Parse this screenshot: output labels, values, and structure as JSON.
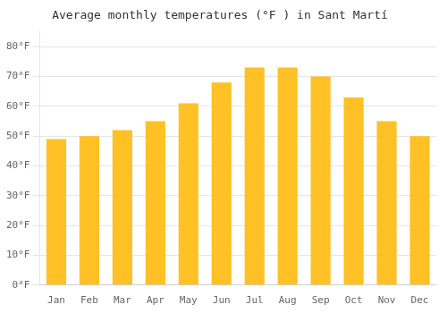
{
  "chart_data": {
    "type": "bar",
    "title": "Average monthly temperatures (°F ) in Sant Martí",
    "categories": [
      "Jan",
      "Feb",
      "Mar",
      "Apr",
      "May",
      "Jun",
      "Jul",
      "Aug",
      "Sep",
      "Oct",
      "Nov",
      "Dec"
    ],
    "values": [
      49,
      50,
      52,
      55,
      61,
      68,
      73,
      73,
      70,
      63,
      55,
      50
    ],
    "color": "#FFC125",
    "ylim": [
      0,
      85
    ],
    "yticks": [
      {
        "value": 0,
        "label": "0°F"
      },
      {
        "value": 10,
        "label": "10°F"
      },
      {
        "value": 20,
        "label": "20°F"
      },
      {
        "value": 30,
        "label": "30°F"
      },
      {
        "value": 40,
        "label": "40°F"
      },
      {
        "value": 50,
        "label": "50°F"
      },
      {
        "value": 60,
        "label": "60°F"
      },
      {
        "value": 70,
        "label": "70°F"
      },
      {
        "value": 80,
        "label": "80°F"
      }
    ],
    "grid": true
  }
}
